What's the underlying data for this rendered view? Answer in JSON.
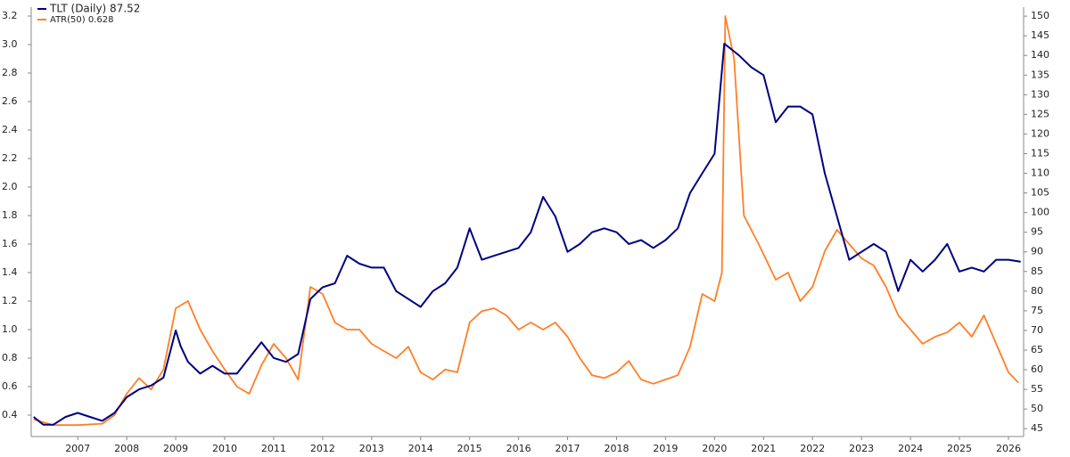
{
  "chart_data": {
    "type": "line",
    "series": [
      {
        "name": "TLT (Daily) 87.52",
        "color": "#000080",
        "axis": "y2",
        "x": [
          2006.1,
          2006.3,
          2006.5,
          2006.75,
          2007.0,
          2007.25,
          2007.5,
          2007.75,
          2008.0,
          2008.25,
          2008.5,
          2008.75,
          2009.0,
          2009.1,
          2009.25,
          2009.5,
          2009.75,
          2010.0,
          2010.25,
          2010.5,
          2010.75,
          2011.0,
          2011.25,
          2011.5,
          2011.75,
          2012.0,
          2012.25,
          2012.5,
          2012.75,
          2013.0,
          2013.25,
          2013.5,
          2013.75,
          2014.0,
          2014.25,
          2014.5,
          2014.75,
          2015.0,
          2015.25,
          2015.5,
          2015.75,
          2016.0,
          2016.25,
          2016.5,
          2016.75,
          2017.0,
          2017.25,
          2017.5,
          2017.75,
          2018.0,
          2018.25,
          2018.5,
          2018.75,
          2019.0,
          2019.25,
          2019.5,
          2019.75,
          2020.0,
          2020.2,
          2020.5,
          2020.75,
          2021.0,
          2021.25,
          2021.5,
          2021.75,
          2022.0,
          2022.25,
          2022.5,
          2022.75,
          2023.0,
          2023.25,
          2023.5,
          2023.75,
          2024.0,
          2024.25,
          2024.5,
          2024.75,
          2025.0,
          2025.25,
          2025.5,
          2025.75,
          2026.0,
          2026.25
        ],
        "values": [
          48,
          46,
          46,
          48,
          49,
          48,
          47,
          49,
          53,
          55,
          56,
          58,
          70,
          66,
          62,
          59,
          61,
          59,
          59,
          63,
          67,
          63,
          62,
          64,
          78,
          81,
          82,
          89,
          87,
          86,
          86,
          80,
          78,
          76,
          80,
          82,
          86,
          96,
          88,
          89,
          90,
          91,
          95,
          104,
          99,
          90,
          92,
          95,
          96,
          95,
          92,
          93,
          91,
          93,
          96,
          105,
          110,
          115,
          143,
          140,
          137,
          135,
          123,
          127,
          127,
          125,
          110,
          99,
          88,
          90,
          92,
          90,
          80,
          88,
          85,
          88,
          92,
          85,
          86,
          85,
          88,
          88,
          87.5
        ]
      },
      {
        "name": "ATR(50) 0.628",
        "color": "#ff7f27",
        "axis": "y",
        "x": [
          2006.1,
          2006.5,
          2007.0,
          2007.5,
          2007.75,
          2008.0,
          2008.25,
          2008.5,
          2008.75,
          2009.0,
          2009.25,
          2009.5,
          2009.75,
          2010.0,
          2010.25,
          2010.5,
          2010.75,
          2011.0,
          2011.25,
          2011.5,
          2011.75,
          2012.0,
          2012.25,
          2012.5,
          2012.75,
          2013.0,
          2013.25,
          2013.5,
          2013.75,
          2014.0,
          2014.25,
          2014.5,
          2014.75,
          2015.0,
          2015.25,
          2015.5,
          2015.75,
          2016.0,
          2016.25,
          2016.5,
          2016.75,
          2017.0,
          2017.25,
          2017.5,
          2017.75,
          2018.0,
          2018.25,
          2018.5,
          2018.75,
          2019.0,
          2019.25,
          2019.5,
          2019.75,
          2020.0,
          2020.15,
          2020.22,
          2020.4,
          2020.6,
          2020.9,
          2021.25,
          2021.5,
          2021.75,
          2022.0,
          2022.25,
          2022.5,
          2022.75,
          2023.0,
          2023.25,
          2023.5,
          2023.75,
          2024.0,
          2024.25,
          2024.5,
          2024.75,
          2025.0,
          2025.25,
          2025.5,
          2025.75,
          2026.0,
          2026.2
        ],
        "values": [
          0.37,
          0.33,
          0.33,
          0.34,
          0.4,
          0.55,
          0.66,
          0.58,
          0.72,
          1.15,
          1.2,
          1.0,
          0.85,
          0.72,
          0.6,
          0.55,
          0.75,
          0.9,
          0.8,
          0.65,
          1.3,
          1.25,
          1.05,
          1.0,
          1.0,
          0.9,
          0.85,
          0.8,
          0.88,
          0.7,
          0.65,
          0.72,
          0.7,
          1.05,
          1.13,
          1.15,
          1.1,
          1.0,
          1.05,
          1.0,
          1.05,
          0.95,
          0.8,
          0.68,
          0.66,
          0.7,
          0.78,
          0.65,
          0.62,
          0.65,
          0.68,
          0.88,
          1.25,
          1.2,
          1.4,
          3.2,
          2.9,
          1.8,
          1.6,
          1.35,
          1.4,
          1.2,
          1.3,
          1.55,
          1.7,
          1.6,
          1.5,
          1.45,
          1.3,
          1.1,
          1.0,
          0.9,
          0.95,
          0.98,
          1.05,
          0.95,
          1.1,
          0.9,
          0.7,
          0.628
        ]
      }
    ],
    "xlim": [
      2006.05,
      2026.31
    ],
    "xticks": [
      2007,
      2008,
      2009,
      2010,
      2011,
      2012,
      2013,
      2014,
      2015,
      2016,
      2017,
      2018,
      2019,
      2020,
      2021,
      2022,
      2023,
      2024,
      2025,
      2026
    ],
    "ylim": [
      0.25,
      3.2625
    ],
    "yticks": [
      0.4,
      0.6,
      0.8,
      {
        "value": 1.0,
        "label": "1.0"
      },
      1.2,
      1.4,
      1.6,
      1.8,
      {
        "value": 2.0,
        "label": "2.0"
      },
      2.2,
      2.4,
      2.6,
      2.8,
      {
        "value": 3.0,
        "label": "3.0"
      },
      3.2
    ],
    "y2lim": [
      43,
      152.3
    ],
    "y2ticks": [
      45,
      50,
      55,
      60,
      65,
      70,
      75,
      80,
      85,
      90,
      95,
      100,
      105,
      110,
      115,
      120,
      125,
      130,
      135,
      140,
      145,
      150
    ],
    "grid": false
  }
}
